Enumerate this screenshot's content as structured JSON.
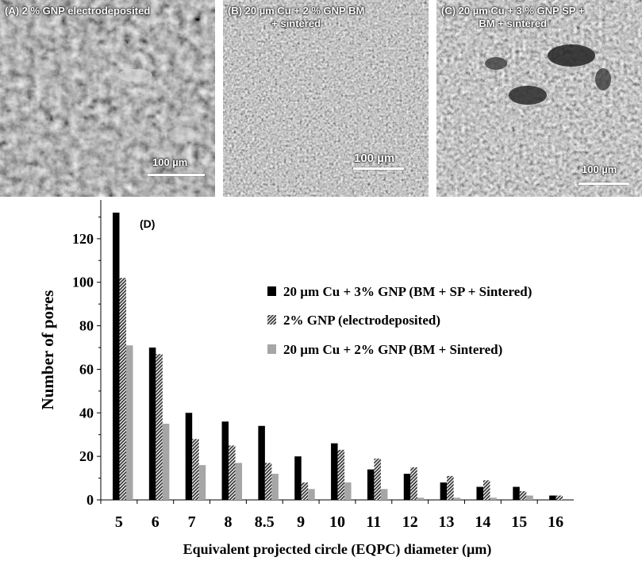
{
  "panels": [
    {
      "label": "(A)",
      "title": "2 % GNP electrodeposited",
      "scale": "100 µm"
    },
    {
      "label": "(B)",
      "title": "20 µm Cu + 2 % GNP BM\n+ sintered",
      "scale": "100 µm"
    },
    {
      "label": "(C)",
      "title": "20 µm Cu + 3 % GNP  SP +\nBM + sintered",
      "scale": "100 µm"
    }
  ],
  "chart_data": {
    "type": "bar",
    "panel_label": "(D)",
    "categories": [
      "5",
      "6",
      "7",
      "8",
      "8.5",
      "9",
      "10",
      "11",
      "12",
      "13",
      "14",
      "15",
      "16"
    ],
    "series": [
      {
        "name": "20 µm Cu + 3% GNP (BM + SP + Sintered)",
        "values": [
          132,
          70,
          40,
          36,
          34,
          20,
          26,
          14,
          12,
          8,
          6,
          6,
          2
        ],
        "color": "#000000",
        "pattern": "solid"
      },
      {
        "name": "2% GNP (electrodeposited)",
        "values": [
          102,
          67,
          28,
          25,
          17,
          8,
          23,
          19,
          15,
          11,
          9,
          4,
          2
        ],
        "color": "#333333",
        "pattern": "hatch"
      },
      {
        "name": "20 µm Cu + 2% GNP (BM + Sintered)",
        "values": [
          71,
          35,
          16,
          17,
          12,
          5,
          8,
          5,
          1,
          1,
          1,
          2,
          0
        ],
        "color": "#a6a6a6",
        "pattern": "solid"
      }
    ],
    "xlabel": "Equivalent projected circle (EQPC) diameter (µm)",
    "ylabel": "Number of pores",
    "ylim": [
      0,
      140
    ],
    "yticks": [
      "0",
      "20",
      "40",
      "60",
      "80",
      "100",
      "120",
      "140"
    ],
    "grid": false,
    "legend_position": "right"
  }
}
